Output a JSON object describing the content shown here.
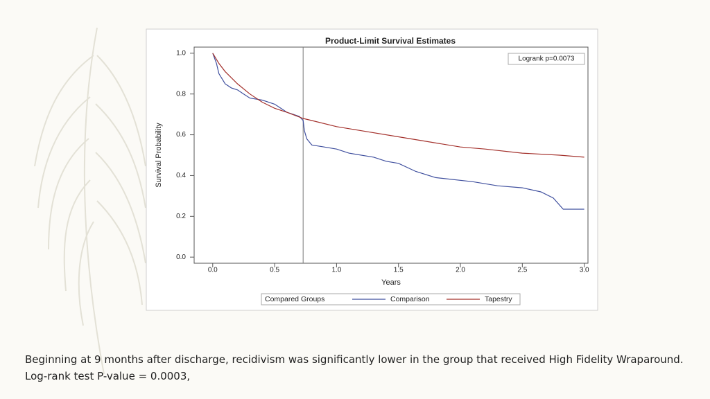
{
  "chart_data": {
    "type": "line",
    "title": "Product-Limit Survival Estimates",
    "x_label": "Years",
    "y_label": "Survival Probability",
    "annotation": "Logrank p=0.0073",
    "legend_title": "Compared Groups",
    "reference_x": 0.73,
    "xlim": [
      -0.15,
      3.03
    ],
    "ylim": [
      -0.03,
      1.03
    ],
    "xticks": [
      {
        "value": 0,
        "label": "0.0"
      },
      0.5,
      {
        "value": 1,
        "label": "1.0"
      },
      1.5,
      {
        "value": 2,
        "label": "2.0"
      },
      2.5,
      {
        "value": 3,
        "label": "3.0"
      }
    ],
    "yticks": [
      {
        "value": 0,
        "label": "0.0"
      },
      0.2,
      0.4,
      0.6,
      0.8,
      {
        "value": 1,
        "label": "1.0"
      }
    ],
    "series": [
      {
        "name": "Comparison",
        "color": "#3f4f9e",
        "x": [
          0,
          0.03,
          0.05,
          0.08,
          0.1,
          0.15,
          0.2,
          0.25,
          0.3,
          0.4,
          0.5,
          0.55,
          0.6,
          0.65,
          0.7,
          0.73,
          0.74,
          0.76,
          0.8,
          0.9,
          1.0,
          1.1,
          1.3,
          1.4,
          1.5,
          1.64,
          1.8,
          2.1,
          2.3,
          2.5,
          2.65,
          2.75,
          2.83,
          3.0
        ],
        "values": [
          1.0,
          0.95,
          0.9,
          0.87,
          0.85,
          0.83,
          0.82,
          0.8,
          0.78,
          0.77,
          0.75,
          0.73,
          0.71,
          0.7,
          0.69,
          0.67,
          0.62,
          0.58,
          0.55,
          0.54,
          0.53,
          0.51,
          0.49,
          0.47,
          0.46,
          0.42,
          0.39,
          0.37,
          0.35,
          0.34,
          0.32,
          0.29,
          0.235,
          0.235
        ]
      },
      {
        "name": "Tapestry",
        "color": "#a3302b",
        "x": [
          0,
          0.05,
          0.1,
          0.2,
          0.3,
          0.4,
          0.5,
          0.6,
          0.73,
          0.8,
          1.0,
          1.2,
          1.5,
          1.7,
          2.0,
          2.2,
          2.5,
          2.8,
          3.0
        ],
        "values": [
          1.0,
          0.95,
          0.91,
          0.85,
          0.8,
          0.76,
          0.73,
          0.71,
          0.68,
          0.67,
          0.64,
          0.62,
          0.59,
          0.57,
          0.54,
          0.53,
          0.51,
          0.5,
          0.49
        ]
      }
    ]
  },
  "caption": [
    "Beginning at 9 months after discharge, recidivism was significantly lower in the group that received High Fidelity Wraparound.",
    "Log-rank test P-value = 0.0003,"
  ]
}
